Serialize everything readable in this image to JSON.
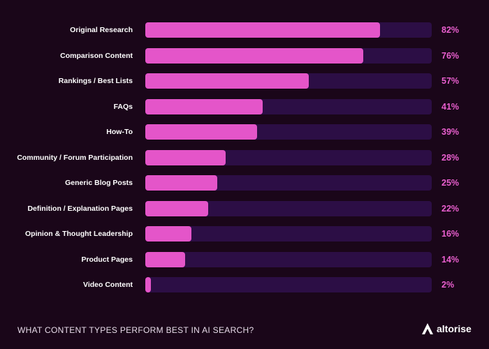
{
  "chart_data": {
    "type": "bar",
    "orientation": "horizontal",
    "categories": [
      "Original Research",
      "Comparison Content",
      "Rankings / Best Lists",
      "FAQs",
      "How-To",
      "Community / Forum Participation",
      "Generic Blog Posts",
      "Definition / Explanation Pages",
      "Opinion & Thought Leadership",
      "Product Pages",
      "Video Content"
    ],
    "values": [
      82,
      76,
      57,
      41,
      39,
      28,
      25,
      22,
      16,
      14,
      2
    ],
    "value_labels": [
      "82%",
      "76%",
      "57%",
      "41%",
      "39%",
      "28%",
      "25%",
      "22%",
      "16%",
      "14%",
      "2%"
    ],
    "xlim": [
      0,
      100
    ],
    "title": "WHAT CONTENT TYPES PERFORM BEST IN AI SEARCH?",
    "grid": false,
    "colors": {
      "bar": "#e455c9",
      "track": "#2c0e45",
      "value_label": "#ea5fcf",
      "background": "#1a0619"
    }
  },
  "brand": {
    "name": "altorise",
    "icon": "altorise-logo-icon"
  }
}
